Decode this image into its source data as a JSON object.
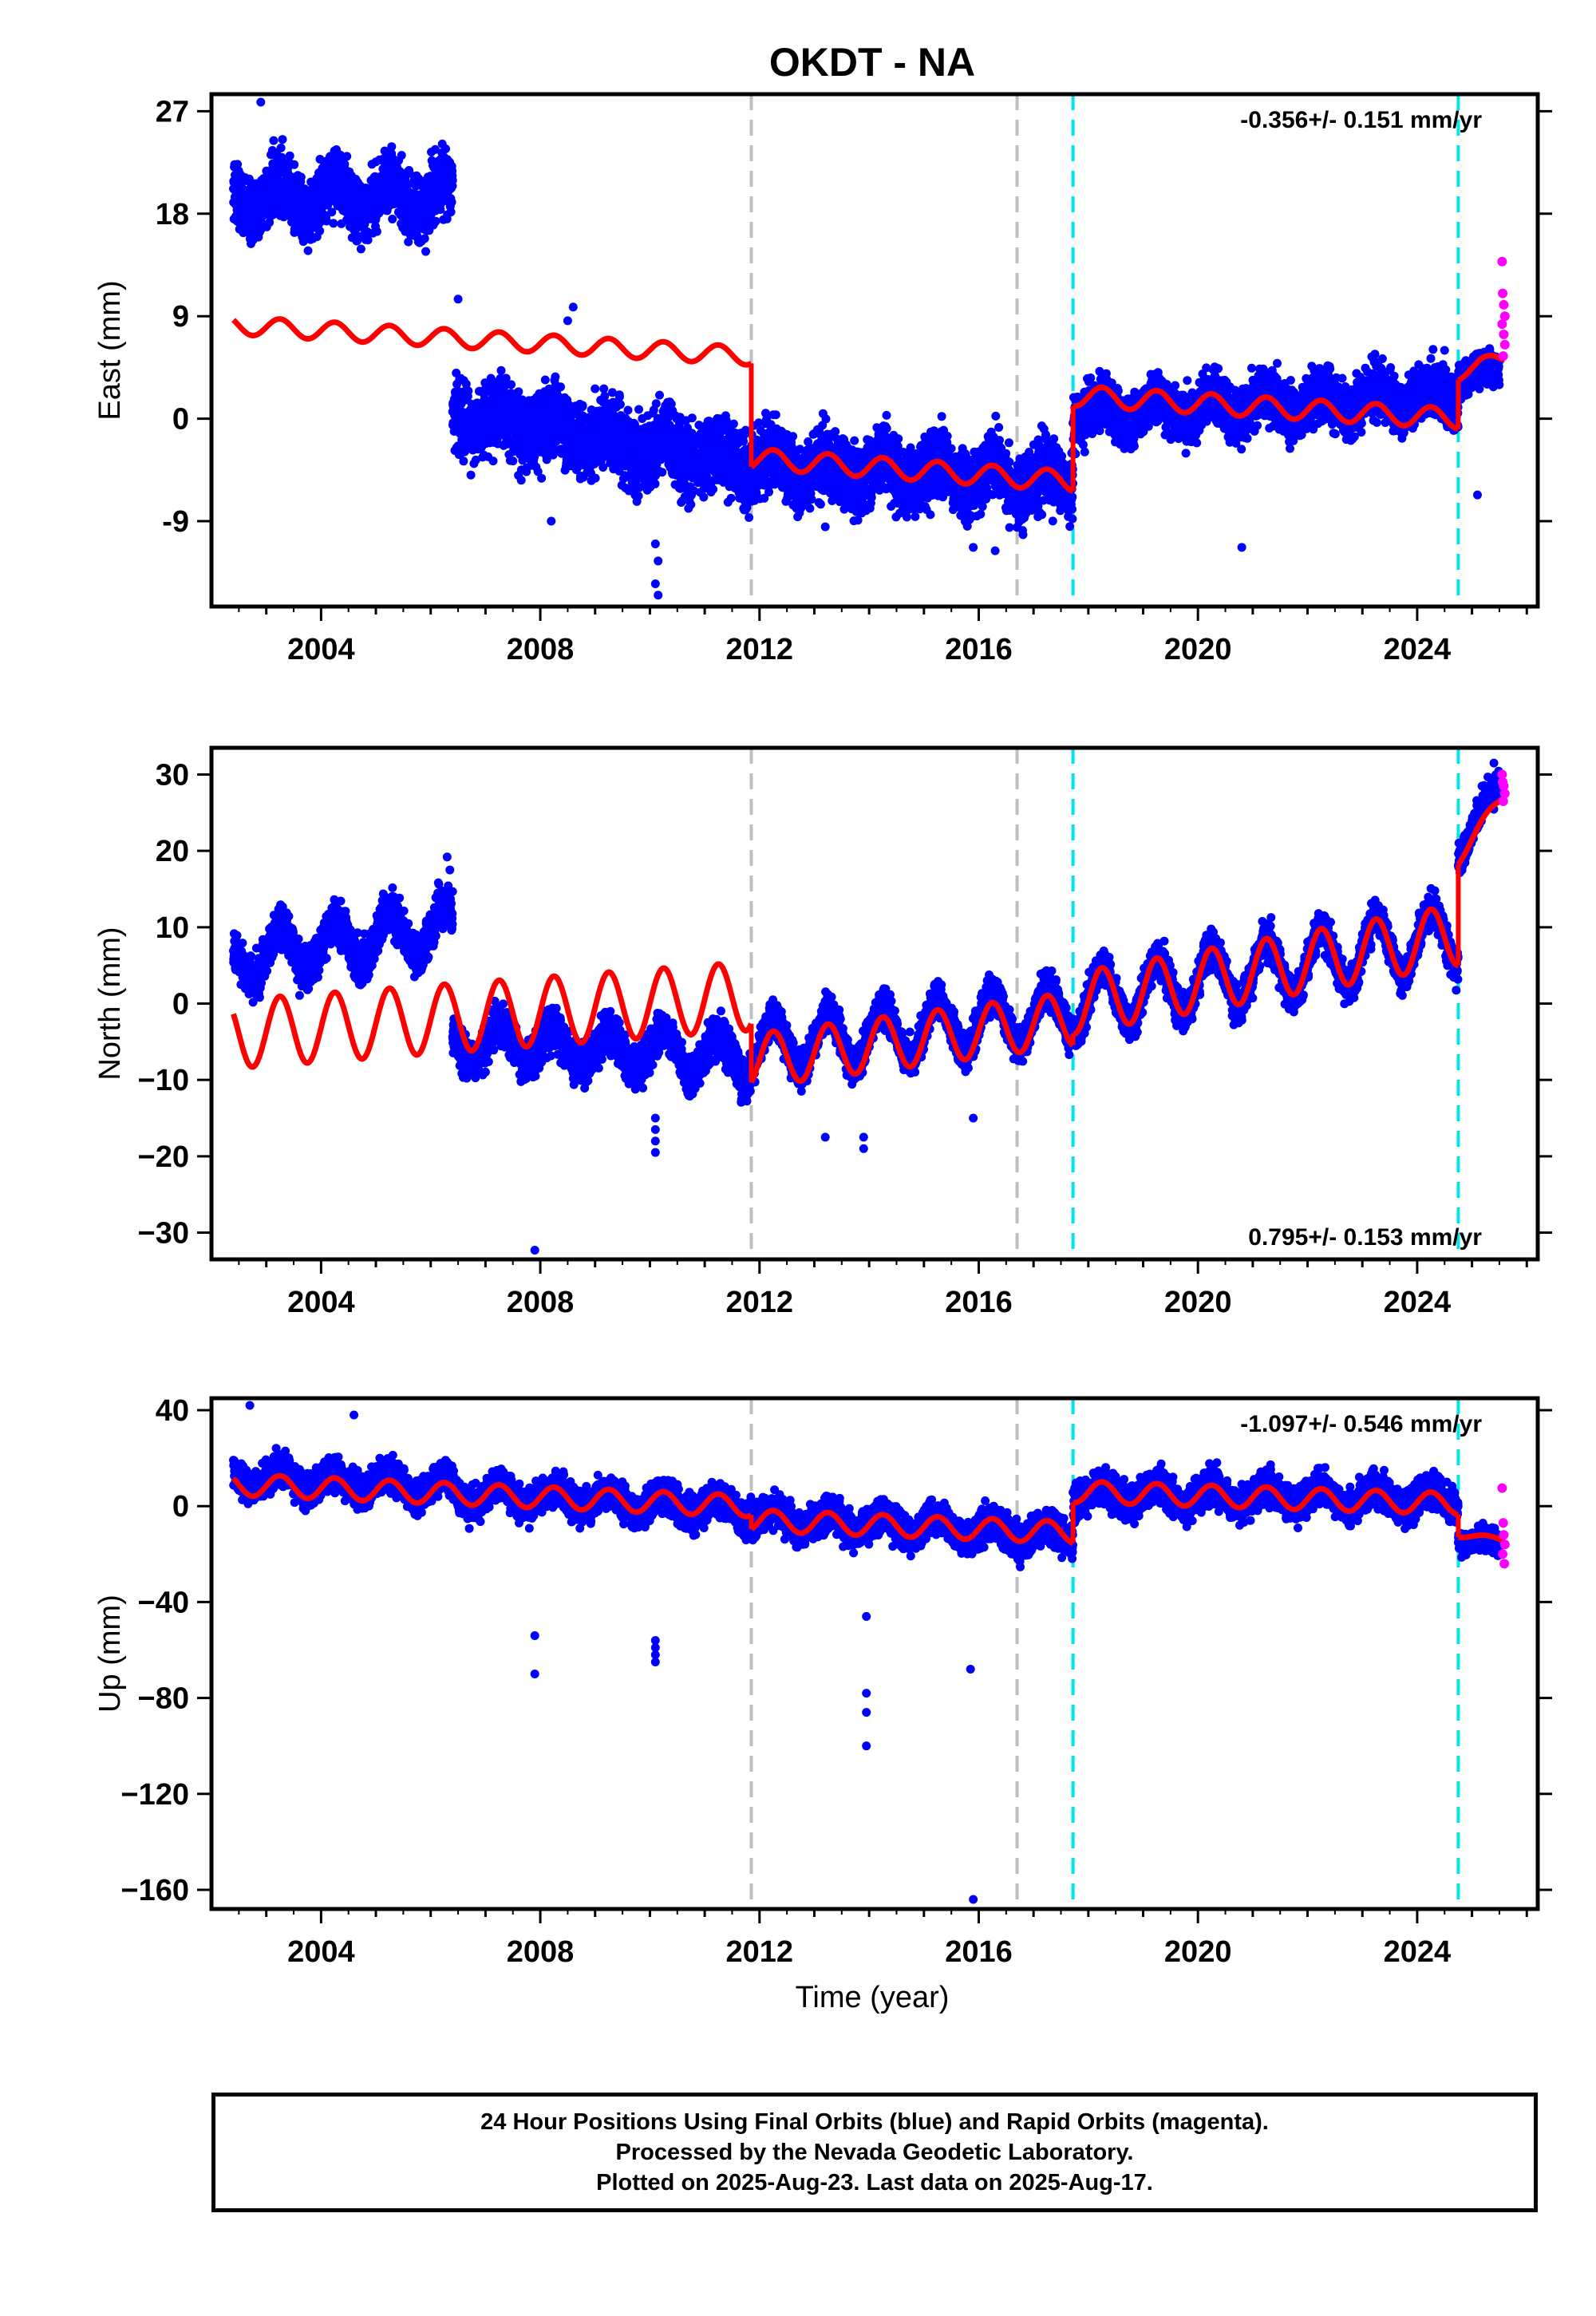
{
  "chart_data": {
    "type": "scatter",
    "title": "OKDT - NA",
    "xlabel": "Time (year)",
    "x_ticks": [
      2004,
      2008,
      2012,
      2016,
      2020,
      2024
    ],
    "xlim": [
      2002.0,
      2026.2
    ],
    "offset_lines": {
      "gray": [
        2011.85,
        2016.7
      ],
      "cyan": [
        2017.72,
        2024.75
      ]
    },
    "colors": {
      "final_orbits": "#0000ff",
      "rapid_orbits": "#ff00ff",
      "model": "#ff0000",
      "offset_gray": "#bfbfbf",
      "offset_cyan": "#00e5ee"
    },
    "panels": [
      {
        "component": "East",
        "ylabel": "East (mm)",
        "ylim": [
          -16.5,
          28.5
        ],
        "yticks": [
          -9,
          0,
          9,
          18,
          27
        ],
        "ytick_labels": [
          "-9",
          "0",
          "9",
          "18",
          "27"
        ],
        "rate": "-0.356+/- 0.151 mm/yr",
        "rate_position": "top-right",
        "segments": [
          {
            "x": [
              2002.4,
              2006.4
            ],
            "center": 19.5,
            "spread": 3.5,
            "season_amp": 1.5
          },
          {
            "x": [
              2006.4,
              2011.85
            ],
            "center": 0.5,
            "spread": 4.0,
            "season_amp": 1.0,
            "trend_end": -4.0
          },
          {
            "x": [
              2011.85,
              2017.72
            ],
            "center": -4.0,
            "spread": 3.8,
            "season_amp": 1.0,
            "trend_end": -5.5
          },
          {
            "x": [
              2017.72,
              2024.75
            ],
            "center": 0.5,
            "spread": 3.0,
            "season_amp": 1.0,
            "trend_end": 2.0
          },
          {
            "x": [
              2024.75,
              2025.5
            ],
            "center": 4.0,
            "spread": 2.0,
            "season_amp": 0.5
          }
        ],
        "model": [
          {
            "x": [
              2002.4,
              2011.85
            ],
            "y": [
              8.2,
              5.5
            ],
            "season_amp": 0.8
          },
          {
            "x": [
              2011.85,
              2017.72
            ],
            "y": [
              -3.5,
              -5.5
            ],
            "season_amp": 0.9
          },
          {
            "x": [
              2017.72,
              2024.75
            ],
            "y": [
              2.0,
              0.0
            ],
            "season_amp": 0.9
          },
          {
            "x": [
              2024.75,
              2025.6
            ],
            "y": [
              4.0,
              5.5
            ],
            "season_amp": 0.6
          }
        ],
        "outliers": [
          [
            2002.9,
            27.8
          ],
          [
            2006.5,
            10.5
          ],
          [
            2008.2,
            -9.0
          ],
          [
            2008.6,
            9.8
          ],
          [
            2008.5,
            8.6
          ],
          [
            2010.1,
            -11.0
          ],
          [
            2010.15,
            -12.5
          ],
          [
            2010.1,
            -14.5
          ],
          [
            2010.15,
            -15.5
          ],
          [
            2013.2,
            -9.5
          ],
          [
            2014.4,
            -7.7
          ],
          [
            2015.9,
            -11.3
          ],
          [
            2016.3,
            -11.6
          ],
          [
            2020.8,
            -11.3
          ],
          [
            2024.5,
            6.0
          ],
          [
            2025.1,
            -6.7
          ]
        ],
        "rapid": [
          [
            2025.55,
            13.8
          ],
          [
            2025.56,
            11.0
          ],
          [
            2025.58,
            10.0
          ],
          [
            2025.6,
            9.0
          ],
          [
            2025.55,
            8.3
          ],
          [
            2025.58,
            7.4
          ],
          [
            2025.6,
            6.5
          ],
          [
            2025.57,
            5.5
          ]
        ]
      },
      {
        "component": "North",
        "ylabel": "North (mm)",
        "ylim": [
          -33.5,
          33.5
        ],
        "yticks": [
          -30,
          -20,
          -10,
          0,
          10,
          20,
          30
        ],
        "ytick_labels": [
          "−30",
          "−20",
          "−10",
          "0",
          "10",
          "20",
          "30"
        ],
        "rate": "0.795+/- 0.153 mm/yr",
        "rate_position": "bottom-right",
        "segments": [
          {
            "x": [
              2002.4,
              2006.4
            ],
            "center": 6.0,
            "spread": 3.5,
            "season_amp": 3.0,
            "trend_end": 10.0
          },
          {
            "x": [
              2006.4,
              2011.85
            ],
            "center": -5.0,
            "spread": 3.5,
            "season_amp": 2.5,
            "trend_end": -7.0
          },
          {
            "x": [
              2011.85,
              2017.72
            ],
            "center": -6.0,
            "spread": 3.0,
            "season_amp": 3.5,
            "trend_end": -1.0
          },
          {
            "x": [
              2017.72,
              2024.75
            ],
            "center": 0.0,
            "spread": 3.0,
            "season_amp": 4.0,
            "trend_end": 9.0
          },
          {
            "x": [
              2024.75,
              2025.5
            ],
            "center": 20.0,
            "spread": 2.5,
            "season_amp": 1.5,
            "trend_end": 28.0
          }
        ],
        "model": [
          {
            "x": [
              2002.4,
              2011.85
            ],
            "y": [
              -4.0,
              1.0
            ],
            "season_amp": 4.5
          },
          {
            "x": [
              2011.85,
              2017.72
            ],
            "y": [
              -7.5,
              -2.0
            ],
            "season_amp": 3.5
          },
          {
            "x": [
              2017.72,
              2024.75
            ],
            "y": [
              0.0,
              9.0
            ],
            "season_amp": 4.0
          },
          {
            "x": [
              2024.75,
              2025.6
            ],
            "y": [
              19.0,
              27.5
            ],
            "season_amp": 0.8
          }
        ],
        "outliers": [
          [
            2006.3,
            19.2
          ],
          [
            2006.35,
            17.5
          ],
          [
            2007.9,
            -32.3
          ],
          [
            2010.1,
            -15.0
          ],
          [
            2010.1,
            -16.5
          ],
          [
            2010.1,
            -18.0
          ],
          [
            2010.1,
            -19.5
          ],
          [
            2013.2,
            -17.5
          ],
          [
            2013.9,
            -19.0
          ],
          [
            2013.9,
            -17.5
          ],
          [
            2015.9,
            -15.0
          ],
          [
            2025.4,
            31.5
          ]
        ],
        "rapid": [
          [
            2025.55,
            30.0
          ],
          [
            2025.56,
            29.0
          ],
          [
            2025.58,
            28.5
          ],
          [
            2025.6,
            27.5
          ],
          [
            2025.57,
            26.5
          ]
        ]
      },
      {
        "component": "Up",
        "ylabel": "Up (mm)",
        "ylim": [
          -168,
          45
        ],
        "yticks": [
          -160,
          -120,
          -80,
          -40,
          0,
          40
        ],
        "ytick_labels": [
          "−160",
          "−120",
          "−80",
          "−40",
          "0",
          "40"
        ],
        "rate": "-1.097+/- 0.546 mm/yr",
        "rate_position": "top-right",
        "segments": [
          {
            "x": [
              2002.4,
              2006.4
            ],
            "center": 12.0,
            "spread": 9.0,
            "season_amp": 4.0,
            "trend_end": 8.0
          },
          {
            "x": [
              2006.4,
              2011.85
            ],
            "center": 5.0,
            "spread": 9.0,
            "season_amp": 4.0,
            "trend_end": -1.0
          },
          {
            "x": [
              2011.85,
              2017.72
            ],
            "center": -5.0,
            "spread": 9.0,
            "season_amp": 4.0,
            "trend_end": -12.0
          },
          {
            "x": [
              2017.72,
              2024.75
            ],
            "center": 5.0,
            "spread": 9.0,
            "season_amp": 4.0,
            "trend_end": 3.0
          },
          {
            "x": [
              2024.75,
              2025.5
            ],
            "center": -14.0,
            "spread": 6.0,
            "season_amp": 2.0,
            "trend_end": -16.0
          }
        ],
        "model": [
          {
            "x": [
              2002.4,
              2011.85
            ],
            "y": [
              9.0,
              0.0
            ],
            "season_amp": 4.5
          },
          {
            "x": [
              2011.85,
              2017.72
            ],
            "y": [
              -6.0,
              -11.0
            ],
            "season_amp": 4.5
          },
          {
            "x": [
              2017.72,
              2024.75
            ],
            "y": [
              6.0,
              1.0
            ],
            "season_amp": 4.5
          },
          {
            "x": [
              2024.75,
              2025.6
            ],
            "y": [
              -12.0,
              -14.0
            ],
            "season_amp": 1.0
          }
        ],
        "outliers": [
          [
            2002.7,
            42.0
          ],
          [
            2004.6,
            38.0
          ],
          [
            2007.9,
            -54.0
          ],
          [
            2007.9,
            -70.0
          ],
          [
            2010.1,
            -56.0
          ],
          [
            2010.1,
            -59.0
          ],
          [
            2010.1,
            -62.0
          ],
          [
            2010.1,
            -65.0
          ],
          [
            2013.95,
            -46.0
          ],
          [
            2013.95,
            -78.0
          ],
          [
            2013.95,
            -86.0
          ],
          [
            2013.95,
            -100.0
          ],
          [
            2015.85,
            -68.0
          ],
          [
            2015.9,
            -164.0
          ]
        ],
        "rapid": [
          [
            2025.55,
            7.5
          ],
          [
            2025.57,
            -7.0
          ],
          [
            2025.58,
            -12.0
          ],
          [
            2025.6,
            -16.0
          ],
          [
            2025.56,
            -20.0
          ],
          [
            2025.59,
            -24.0
          ]
        ]
      }
    ]
  },
  "caption": {
    "line1": "24 Hour Positions Using Final Orbits (blue) and Rapid Orbits (magenta).",
    "line2": "Processed by the Nevada Geodetic Laboratory.",
    "line3": "Plotted on 2025-Aug-23. Last data on 2025-Aug-17."
  }
}
